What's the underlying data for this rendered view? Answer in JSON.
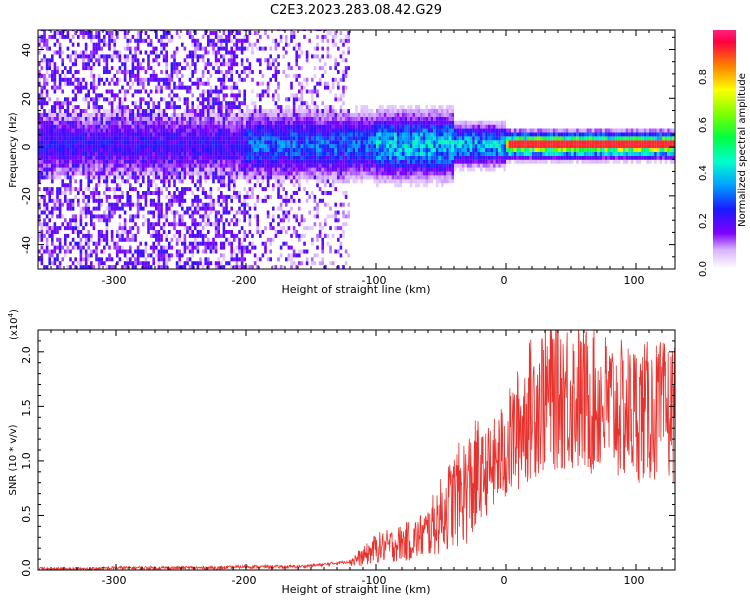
{
  "figure": {
    "title": "C2E3.2023.283.08.42.G29"
  },
  "chart_data": [
    {
      "type": "heatmap",
      "xlabel": "Height of straight line (km)",
      "ylabel": "Frequency (Hz)",
      "xlim": [
        -360,
        130
      ],
      "ylim": [
        -50,
        48
      ],
      "x_ticks": [
        "-300",
        "-200",
        "-100",
        "0",
        "100"
      ],
      "y_ticks": [
        "40",
        "20",
        "0",
        "-20",
        "-40"
      ],
      "colorbar": {
        "label": "Normalized spectral amplitude",
        "range": [
          0,
          1
        ],
        "ticks": [
          "0.0",
          "0.2",
          "0.4",
          "0.6",
          "0.8"
        ]
      },
      "grid": false,
      "description_of_content": "Broadband noise at heights below about -120 km; energy concentrates near 0 Hz and narrows to a strong line above -20 km"
    },
    {
      "type": "line",
      "xlabel": "Height of straight line (km)",
      "ylabel": "SNR (10 * v/v)",
      "multiplier": "(x10",
      "multiplier_exp": "4",
      "multiplier_close": ")",
      "xlim": [
        -360,
        130
      ],
      "ylim": [
        0,
        2.2
      ],
      "x_ticks": [
        "-300",
        "-200",
        "-100",
        "0",
        "100"
      ],
      "y_ticks": [
        "0.0",
        "0.5",
        "1.0",
        "1.5",
        "2.0"
      ],
      "grid": false,
      "series": [
        {
          "color": "#e8322e",
          "x": [
            -360,
            -340,
            -320,
            -300,
            -280,
            -260,
            -240,
            -220,
            -200,
            -180,
            -160,
            -140,
            -120,
            -110,
            -100,
            -90,
            -80,
            -70,
            -60,
            -50,
            -40,
            -30,
            -20,
            -10,
            0,
            10,
            20,
            30,
            40,
            50,
            60,
            70,
            80,
            90,
            100,
            110,
            120,
            130
          ],
          "y": [
            0.01,
            0.01,
            0.01,
            0.02,
            0.02,
            0.02,
            0.02,
            0.02,
            0.03,
            0.03,
            0.03,
            0.05,
            0.08,
            0.12,
            0.2,
            0.22,
            0.25,
            0.28,
            0.35,
            0.5,
            0.65,
            0.75,
            0.85,
            0.95,
            1.1,
            1.3,
            1.5,
            1.6,
            1.65,
            1.6,
            1.55,
            1.55,
            1.5,
            1.45,
            1.45,
            1.45,
            1.45,
            1.45
          ]
        }
      ]
    }
  ]
}
